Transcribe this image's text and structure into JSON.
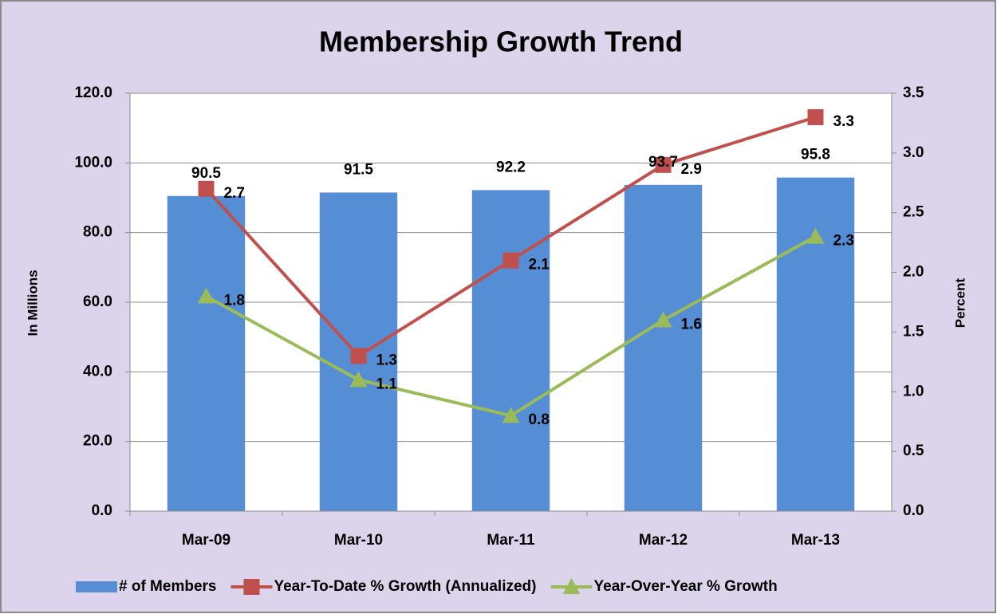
{
  "chart_data": {
    "type": "bar",
    "title": "Membership Growth Trend",
    "y_label": "In Millions",
    "y2_label": "Percent",
    "categories": [
      "Mar-09",
      "Mar-10",
      "Mar-11",
      "Mar-12",
      "Mar-13"
    ],
    "series": [
      {
        "name": "# of Members",
        "type": "bar",
        "color": "#558ed5",
        "values": [
          90.5,
          91.5,
          92.2,
          93.7,
          95.8
        ]
      },
      {
        "name": "Year-To-Date % Growth (Annualized)",
        "type": "line",
        "marker": "square",
        "axis": "y2",
        "color": "#c0504d",
        "values": [
          2.7,
          1.3,
          2.1,
          2.9,
          3.3
        ]
      },
      {
        "name": "Year-Over-Year % Growth",
        "type": "line",
        "marker": "triangle",
        "axis": "y2",
        "color": "#9bbb59",
        "values": [
          1.8,
          1.1,
          0.8,
          1.6,
          2.3
        ]
      }
    ],
    "ylim": [
      0,
      120
    ],
    "yticks": [
      {
        "value": 0,
        "label": "0.0"
      },
      {
        "value": 20,
        "label": "20.0"
      },
      {
        "value": 40,
        "label": "40.0"
      },
      {
        "value": 60,
        "label": "60.0"
      },
      {
        "value": 80,
        "label": "80.0"
      },
      {
        "value": 100,
        "label": "100.0"
      },
      {
        "value": 120,
        "label": "120.0"
      }
    ],
    "y2lim": [
      0,
      3.5
    ],
    "y2ticks": [
      {
        "value": 0,
        "label": "0.0"
      },
      0.5,
      {
        "value": 1,
        "label": "1.0"
      },
      1.5,
      {
        "value": 2,
        "label": "2.0"
      },
      2.5,
      {
        "value": 3,
        "label": "3.0"
      },
      3.5
    ],
    "grid": true,
    "legend": "bottom"
  }
}
